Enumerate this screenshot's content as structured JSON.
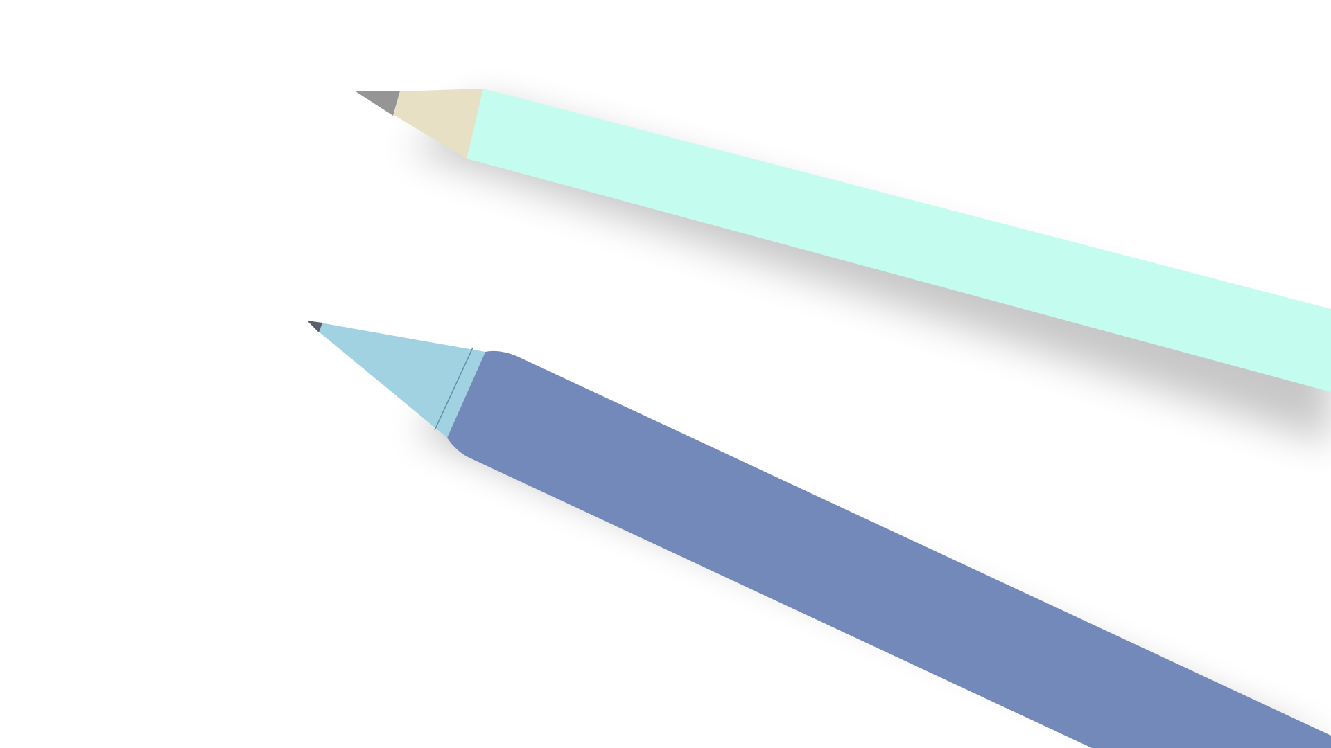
{
  "scene": {
    "background": "#ffffff",
    "shadow_color": "#000000"
  },
  "pencil": {
    "body_color": "#c4fcf0",
    "wood_color": "#e8e0c4",
    "lead_color": "#959595"
  },
  "pen": {
    "body_color": "#7389ba",
    "tip_color": "#a0d2e2",
    "tip_line_color": "#5f8fa4",
    "nib_color": "#5b5f6b"
  }
}
